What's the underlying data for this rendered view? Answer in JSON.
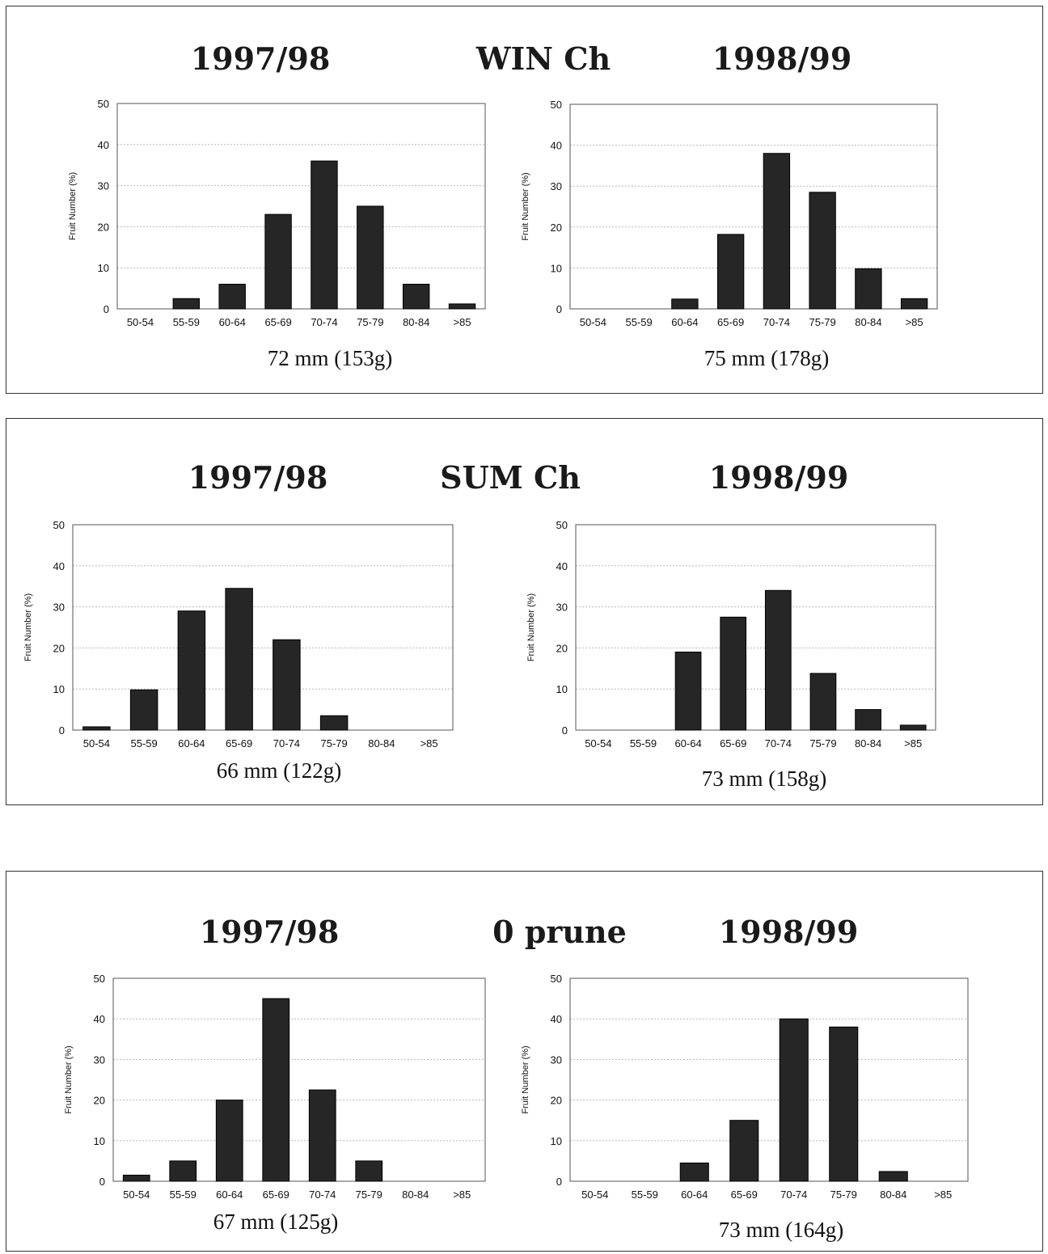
{
  "panels": [
    {
      "treatment": "WIN Ch",
      "chart_data": [
        {
          "type": "bar",
          "title": "1997/98",
          "ylabel": "Fruit Number (%)",
          "xlabel": "",
          "categories": [
            "50-54",
            "55-59",
            "60-64",
            "65-69",
            "70-74",
            "75-79",
            "80-84",
            ">85"
          ],
          "values": [
            0,
            2.5,
            6,
            23,
            36,
            25,
            6,
            1.2
          ],
          "ylim": [
            0,
            50
          ],
          "yticks": [
            "0",
            "10",
            "20",
            "30",
            "40",
            "50"
          ],
          "grid": true,
          "caption": "72 mm (153g)"
        },
        {
          "type": "bar",
          "title": "1998/99",
          "ylabel": "Fruit Number (%)",
          "xlabel": "",
          "categories": [
            "50-54",
            "55-59",
            "60-64",
            "65-69",
            "70-74",
            "75-79",
            "80-84",
            ">85"
          ],
          "values": [
            0,
            0,
            2.4,
            18.2,
            38,
            28.5,
            9.8,
            2.5
          ],
          "ylim": [
            0,
            50
          ],
          "yticks": [
            "0",
            "10",
            "20",
            "30",
            "40",
            "50"
          ],
          "grid": true,
          "caption": "75 mm (178g)"
        }
      ]
    },
    {
      "treatment": "SUM Ch",
      "chart_data": [
        {
          "type": "bar",
          "title": "1997/98",
          "ylabel": "Fruit Number (%)",
          "xlabel": "",
          "categories": [
            "50-54",
            "55-59",
            "60-64",
            "65-69",
            "70-74",
            "75-79",
            "80-84",
            ">85"
          ],
          "values": [
            0.8,
            9.8,
            29,
            34.5,
            22,
            3.5,
            0,
            0
          ],
          "ylim": [
            0,
            50
          ],
          "yticks": [
            "0",
            "10",
            "20",
            "30",
            "40",
            "50"
          ],
          "grid": true,
          "caption": "66 mm (122g)"
        },
        {
          "type": "bar",
          "title": "1998/99",
          "ylabel": "Fruit Number (%)",
          "xlabel": "",
          "categories": [
            "50-54",
            "55-59",
            "60-64",
            "65-69",
            "70-74",
            "75-79",
            "80-84",
            ">85"
          ],
          "values": [
            0,
            0,
            19,
            27.5,
            34,
            13.8,
            5,
            1.2
          ],
          "ylim": [
            0,
            50
          ],
          "yticks": [
            "0",
            "10",
            "20",
            "30",
            "40",
            "50"
          ],
          "grid": true,
          "caption": "73 mm (158g)"
        }
      ]
    },
    {
      "treatment": "0 prune",
      "chart_data": [
        {
          "type": "bar",
          "title": "1997/98",
          "ylabel": "Fruit Number (%)",
          "xlabel": "",
          "categories": [
            "50-54",
            "55-59",
            "60-64",
            "65-69",
            "70-74",
            "75-79",
            "80-84",
            ">85"
          ],
          "values": [
            1.5,
            5,
            20,
            45,
            22.5,
            5,
            0,
            0
          ],
          "ylim": [
            0,
            50
          ],
          "yticks": [
            "0",
            "10",
            "20",
            "30",
            "40",
            "50"
          ],
          "grid": true,
          "caption": "67 mm (125g)"
        },
        {
          "type": "bar",
          "title": "1998/99",
          "ylabel": "Fruit Number (%)",
          "xlabel": "",
          "categories": [
            "50-54",
            "55-59",
            "60-64",
            "65-69",
            "70-74",
            "75-79",
            "80-84",
            ">85"
          ],
          "values": [
            0,
            0,
            4.5,
            15,
            40,
            38,
            2.4,
            0
          ],
          "ylim": [
            0,
            50
          ],
          "yticks": [
            "0",
            "10",
            "20",
            "30",
            "40",
            "50"
          ],
          "grid": true,
          "caption": "73 mm (164g)"
        }
      ]
    }
  ]
}
